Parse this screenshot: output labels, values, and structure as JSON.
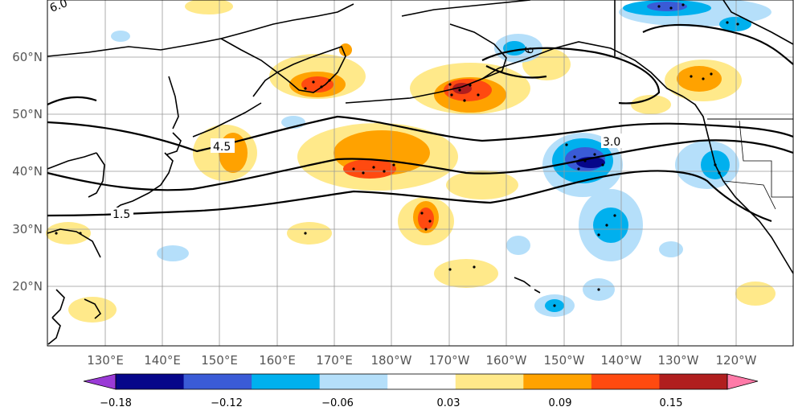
{
  "map": {
    "lat_labels": [
      "60°N",
      "50°N",
      "40°N",
      "30°N",
      "20°N"
    ],
    "lon_labels": [
      "130°E",
      "140°E",
      "150°E",
      "160°E",
      "170°E",
      "180°W",
      "170°W",
      "160°W",
      "150°W",
      "140°W",
      "130°W",
      "120°W"
    ],
    "contour_labels": [
      "6.0",
      "4.5",
      "3.0",
      "1.5",
      "6"
    ]
  },
  "colorbar": {
    "colors": [
      "#9a3ad6",
      "#06068a",
      "#3a5bd6",
      "#00b0ee",
      "#b5dffa",
      "#ffffff",
      "#ffe98a",
      "#ffa200",
      "#ff4a10",
      "#b01e1e",
      "#ff7aa8"
    ],
    "tick_labels": [
      "−0.18",
      "−0.12",
      "−0.06",
      "0.03",
      "0.09",
      "0.15"
    ]
  }
}
